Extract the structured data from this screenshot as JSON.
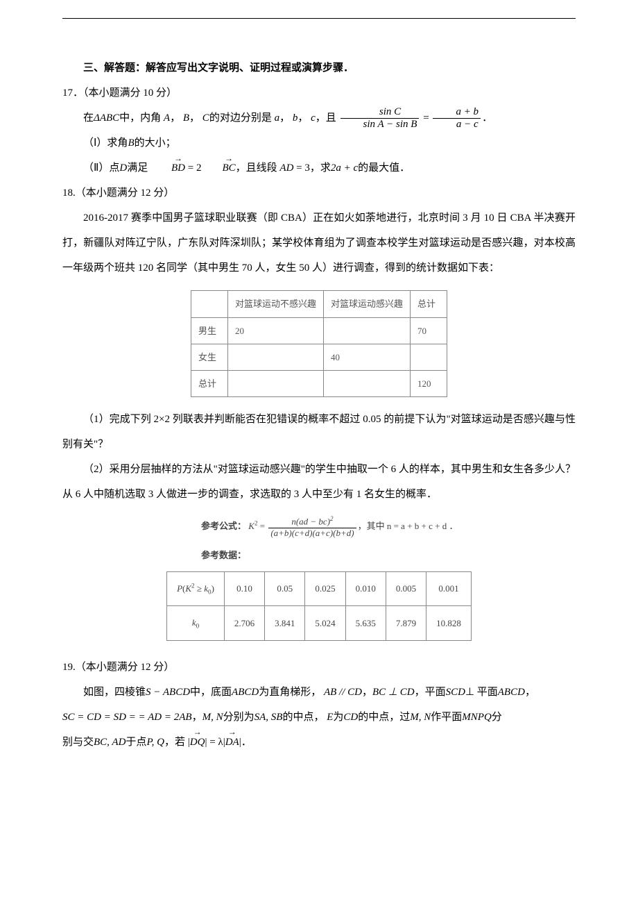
{
  "section_title": "三、解答题：解答应写出文字说明、证明过程或演算步骤．",
  "q17": {
    "head": "17．（本小题满分 10 分）",
    "l1_a": "在",
    "l1_tri": "ΔABC",
    "l1_b": "中，内角",
    "l1_A": "A",
    "l1_comma1": "，",
    "l1_B": "B",
    "l1_comma2": "，",
    "l1_C": "C",
    "l1_c": "的对边分别是",
    "l1_a2": "a",
    "l1_comma3": "，",
    "l1_b2": "b",
    "l1_comma4": "，",
    "l1_c2": "c",
    "l1_d": "，且",
    "frac_l_num": "sin C",
    "frac_l_den": "sin A − sin B",
    "eq1": "=",
    "frac_r_num": "a + b",
    "frac_r_den": "a − c",
    "l1_end": "．",
    "p1_a": "（Ⅰ）求角",
    "p1_B": "B",
    "p1_b": "的大小；",
    "p2_a": "（Ⅱ）点",
    "p2_D": "D",
    "p2_b": "满足",
    "vec_BD": "BD",
    "p2_eq": " = 2",
    "vec_BC": "BC",
    "p2_c": "，且线段",
    "p2_AD": "AD",
    "p2_d": " = 3，求",
    "p2_expr": "2a + c",
    "p2_e": "的最大值．"
  },
  "q18": {
    "head": "18.（本小题满分 12 分）",
    "para1": "2016-2017 赛季中国男子篮球职业联赛（即 CBA）正在如火如荼地进行，北京时间 3 月 10 日 CBA 半决赛开打，新疆队对阵辽宁队，广东队对阵深圳队；某学校体育组为了调查本校学生对篮球运动是否感兴趣，对本校高一年级两个班共 120 名同学（其中男生 70 人，女生 50 人）进行调查，得到的统计数据如下表：",
    "tbl1": {
      "cols": [
        "",
        "对篮球运动不感兴趣",
        "对篮球运动感兴趣",
        "总计"
      ],
      "rows": [
        [
          "男生",
          "20",
          "",
          "70"
        ],
        [
          "女生",
          "",
          "40",
          ""
        ],
        [
          "总计",
          "",
          "",
          "120"
        ]
      ]
    },
    "part1": "（1）完成下列 2×2 列联表并判断能否在犯错误的概率不超过 0.05 的前提下认为\"对篮球运动是否感兴趣与性别有关\"？",
    "part2": "（2）采用分层抽样的方法从\"对篮球运动感兴趣\"的学生中抽取一个 6 人的样本，其中男生和女生各多少人？从 6 人中随机选取 3 人做进一步的调查，求选取的 3 人中至少有 1 名女生的概率．",
    "formula_lbl": "参考公式：",
    "formula_lhs": "K",
    "formula_sup": "2",
    "formula_eq": " = ",
    "formula_num": "n(ad − bc)",
    "formula_num_sup": "2",
    "formula_den": "(a+b)(c+d)(a+c)(b+d)",
    "formula_tail": "，其中 n = a + b + c + d ．",
    "ref_data_lbl": "参考数据：",
    "tbl2": {
      "head_cell_html": "P(K² ≥ k₀)",
      "row1_label": "k₀",
      "p_row": [
        "0.10",
        "0.05",
        "0.025",
        "0.010",
        "0.005",
        "0.001"
      ],
      "k_row": [
        "2.706",
        "3.841",
        "5.024",
        "5.635",
        "7.879",
        "10.828"
      ]
    }
  },
  "q19": {
    "head": "19.（本小题满分 12 分）",
    "l1_a": "如图，四棱锥",
    "l1_S": "S − ABCD",
    "l1_b": "中，底面",
    "l1_abcd": "ABCD",
    "l1_c": "为直角梯形，",
    "l1_par": "AB // CD",
    "l1_comma": "，",
    "l1_perp": "BC ⊥ CD",
    "l1_d": "，平面",
    "l1_scd": "SCD",
    "l1_e": "⊥ 平面",
    "l1_abcd2": "ABCD",
    "l1_f": "，",
    "l2_eq": "SC = CD = SD = = AD = 2AB",
    "l2_a": "，",
    "l2_MN": "M, N",
    "l2_b": "分别为",
    "l2_SASB": "SA, SB",
    "l2_c": "的中点，",
    "l2_E": "E",
    "l2_d": "为",
    "l2_CD": "CD",
    "l2_e": "的中点，过",
    "l2_MN2": "M, N",
    "l2_f": "作平面",
    "l2_MNPQ": "MNPQ",
    "l2_g": "分",
    "l3_a": "别与交",
    "l3_bcad": "BC, AD",
    "l3_b": "于点",
    "l3_PQ": "P, Q",
    "l3_c": "，若",
    "vec_DQ": "DQ",
    "l3_eq": " = λ",
    "vec_DA": "DA",
    "l3_end": "．"
  }
}
